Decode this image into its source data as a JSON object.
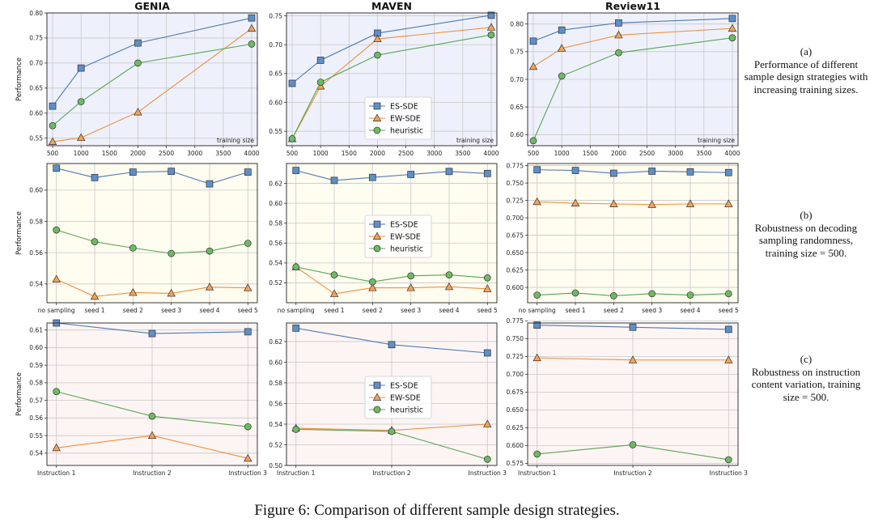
{
  "figure": {
    "caption": "Figure 6: Comparison of different sample design strategies.",
    "row_captions": [
      {
        "label": "(a)",
        "text": "Performance of different sample design strategies with increasing training sizes."
      },
      {
        "label": "(b)",
        "text": "Robustness on decoding sampling randomness, training size = 500."
      },
      {
        "label": "(c)",
        "text": "Robustness on instruction content variation, training size = 500."
      }
    ]
  },
  "colors": {
    "ES-SDE": "#4e79b0",
    "EW-SDE": "#ef8f3c",
    "heuristic": "#58a551",
    "ES-SDE_fill": "#5d8fc9",
    "EW-SDE_fill": "#f3a257",
    "heuristic_fill": "#6dba63",
    "bg_a": "#eef1fb",
    "bg_b": "#fffcf0",
    "bg_c": "#fcf5f4"
  },
  "chart_data": [
    {
      "id": "genia-size",
      "type": "line",
      "title": "GENIA",
      "ylabel": "Performance",
      "xlabel_inline": "training size",
      "x": [
        500,
        1000,
        2000,
        4000
      ],
      "xlim": [
        400,
        4100
      ],
      "xticks": [
        500,
        1000,
        1500,
        2000,
        2500,
        3000,
        3500,
        4000
      ],
      "ylim": [
        0.535,
        0.8
      ],
      "yticks": [
        0.55,
        0.6,
        0.65,
        0.7,
        0.75,
        0.8
      ],
      "ytick_labels": [
        "0.55",
        "0.60",
        "0.65",
        "0.70",
        "0.75",
        "0.80"
      ],
      "series": [
        {
          "name": "ES-SDE",
          "values": [
            0.614,
            0.69,
            0.74,
            0.79
          ]
        },
        {
          "name": "EW-SDE",
          "values": [
            0.543,
            0.551,
            0.602,
            0.769
          ]
        },
        {
          "name": "heuristic",
          "values": [
            0.575,
            0.623,
            0.7,
            0.738
          ]
        }
      ]
    },
    {
      "id": "maven-size",
      "type": "line",
      "title": "MAVEN",
      "xlabel_inline": "training size",
      "x": [
        500,
        1000,
        2000,
        4000
      ],
      "xlim": [
        400,
        4100
      ],
      "xticks": [
        500,
        1000,
        1500,
        2000,
        2500,
        3000,
        3500,
        4000
      ],
      "ylim": [
        0.525,
        0.755
      ],
      "yticks": [
        0.55,
        0.6,
        0.65,
        0.7,
        0.75
      ],
      "ytick_labels": [
        "0.55",
        "0.60",
        "0.65",
        "0.70",
        "0.75"
      ],
      "legend": "center-bottom",
      "series": [
        {
          "name": "ES-SDE",
          "values": [
            0.633,
            0.673,
            0.72,
            0.751
          ]
        },
        {
          "name": "EW-SDE",
          "values": [
            0.537,
            0.628,
            0.71,
            0.73
          ]
        },
        {
          "name": "heuristic",
          "values": [
            0.537,
            0.635,
            0.682,
            0.717
          ]
        }
      ]
    },
    {
      "id": "review11-size",
      "type": "line",
      "title": "Review11",
      "xlabel_inline": "training size",
      "x": [
        500,
        1000,
        2000,
        4000
      ],
      "xlim": [
        400,
        4100
      ],
      "xticks": [
        500,
        1000,
        1500,
        2000,
        2500,
        3000,
        3500,
        4000
      ],
      "ylim": [
        0.58,
        0.82
      ],
      "yticks": [
        0.6,
        0.65,
        0.7,
        0.75,
        0.8
      ],
      "ytick_labels": [
        "0.60",
        "0.65",
        "0.70",
        "0.75",
        "0.80"
      ],
      "series": [
        {
          "name": "ES-SDE",
          "values": [
            0.769,
            0.789,
            0.802,
            0.81
          ]
        },
        {
          "name": "EW-SDE",
          "values": [
            0.723,
            0.756,
            0.78,
            0.792
          ]
        },
        {
          "name": "heuristic",
          "values": [
            0.589,
            0.706,
            0.748,
            0.775
          ]
        }
      ]
    },
    {
      "id": "genia-seed",
      "type": "line",
      "ylabel": "Performance",
      "categories": [
        "no sampling",
        "seed 1",
        "seed 2",
        "seed 3",
        "seed 4",
        "seed 5"
      ],
      "ylim": [
        0.528,
        0.617
      ],
      "yticks": [
        0.54,
        0.56,
        0.58,
        0.6
      ],
      "ytick_labels": [
        "0.54",
        "0.56",
        "0.58",
        "0.60"
      ],
      "series": [
        {
          "name": "ES-SDE",
          "values": [
            0.614,
            0.608,
            0.6115,
            0.612,
            0.604,
            0.6115
          ]
        },
        {
          "name": "EW-SDE",
          "values": [
            0.543,
            0.532,
            0.5345,
            0.534,
            0.538,
            0.5375
          ]
        },
        {
          "name": "heuristic",
          "values": [
            0.5745,
            0.567,
            0.563,
            0.5595,
            0.561,
            0.566
          ]
        }
      ]
    },
    {
      "id": "maven-seed",
      "type": "line",
      "categories": [
        "no sampling",
        "seed 1",
        "seed 2",
        "seed 3",
        "seed 4",
        "seed 5"
      ],
      "ylim": [
        0.5,
        0.64
      ],
      "yticks": [
        0.52,
        0.54,
        0.56,
        0.58,
        0.6,
        0.62
      ],
      "ytick_labels": [
        "0.52",
        "0.54",
        "0.56",
        "0.58",
        "0.60",
        "0.62"
      ],
      "legend": "center",
      "series": [
        {
          "name": "ES-SDE",
          "values": [
            0.633,
            0.623,
            0.626,
            0.629,
            0.632,
            0.63
          ]
        },
        {
          "name": "EW-SDE",
          "values": [
            0.536,
            0.509,
            0.515,
            0.515,
            0.516,
            0.514
          ]
        },
        {
          "name": "heuristic",
          "values": [
            0.536,
            0.528,
            0.521,
            0.527,
            0.528,
            0.525
          ]
        }
      ]
    },
    {
      "id": "review11-seed",
      "type": "line",
      "categories": [
        "no sampling",
        "seed 1",
        "seed 2",
        "seed 3",
        "seed 4",
        "seed 5"
      ],
      "ylim": [
        0.578,
        0.778
      ],
      "yticks": [
        0.6,
        0.625,
        0.65,
        0.675,
        0.7,
        0.725,
        0.75,
        0.775
      ],
      "ytick_labels": [
        "0.600",
        "0.625",
        "0.650",
        "0.675",
        "0.700",
        "0.725",
        "0.750",
        "0.775"
      ],
      "series": [
        {
          "name": "ES-SDE",
          "values": [
            0.769,
            0.768,
            0.764,
            0.767,
            0.766,
            0.765
          ]
        },
        {
          "name": "EW-SDE",
          "values": [
            0.723,
            0.721,
            0.72,
            0.719,
            0.72,
            0.72
          ]
        },
        {
          "name": "heuristic",
          "values": [
            0.589,
            0.592,
            0.588,
            0.591,
            0.589,
            0.591
          ]
        }
      ]
    },
    {
      "id": "genia-inst",
      "type": "line",
      "ylabel": "Performance",
      "categories": [
        "Instruction 1",
        "Instruction 2",
        "Instruction 3"
      ],
      "ylim": [
        0.533,
        0.614
      ],
      "yticks": [
        0.54,
        0.55,
        0.56,
        0.57,
        0.58,
        0.59,
        0.6,
        0.61
      ],
      "ytick_labels": [
        "0.54",
        "0.55",
        "0.56",
        "0.57",
        "0.58",
        "0.59",
        "0.60",
        "0.61"
      ],
      "series": [
        {
          "name": "ES-SDE",
          "values": [
            0.614,
            0.608,
            0.609
          ]
        },
        {
          "name": "EW-SDE",
          "values": [
            0.543,
            0.55,
            0.537
          ]
        },
        {
          "name": "heuristic",
          "values": [
            0.575,
            0.561,
            0.555
          ]
        }
      ]
    },
    {
      "id": "maven-inst",
      "type": "line",
      "categories": [
        "Instruction 1",
        "Instruction 2",
        "Instruction 3"
      ],
      "ylim": [
        0.5,
        0.638
      ],
      "yticks": [
        0.5,
        0.52,
        0.54,
        0.56,
        0.58,
        0.6,
        0.62
      ],
      "ytick_labels": [
        "0.50",
        "0.52",
        "0.54",
        "0.56",
        "0.58",
        "0.60",
        "0.62"
      ],
      "legend": "center",
      "series": [
        {
          "name": "ES-SDE",
          "values": [
            0.633,
            0.617,
            0.609
          ]
        },
        {
          "name": "EW-SDE",
          "values": [
            0.536,
            0.534,
            0.54
          ]
        },
        {
          "name": "heuristic",
          "values": [
            0.535,
            0.533,
            0.506
          ]
        }
      ]
    },
    {
      "id": "review11-inst",
      "type": "line",
      "categories": [
        "Instruction 1",
        "Instruction 2",
        "Instruction 3"
      ],
      "ylim": [
        0.572,
        0.772
      ],
      "yticks": [
        0.575,
        0.6,
        0.625,
        0.65,
        0.675,
        0.7,
        0.725,
        0.75,
        0.775
      ],
      "ytick_labels": [
        "0.575",
        "0.600",
        "0.625",
        "0.650",
        "0.675",
        "0.700",
        "0.725",
        "0.750",
        "0.775"
      ],
      "series": [
        {
          "name": "ES-SDE",
          "values": [
            0.769,
            0.766,
            0.763
          ]
        },
        {
          "name": "EW-SDE",
          "values": [
            0.723,
            0.72,
            0.72
          ]
        },
        {
          "name": "heuristic",
          "values": [
            0.588,
            0.601,
            0.58
          ]
        }
      ]
    }
  ]
}
